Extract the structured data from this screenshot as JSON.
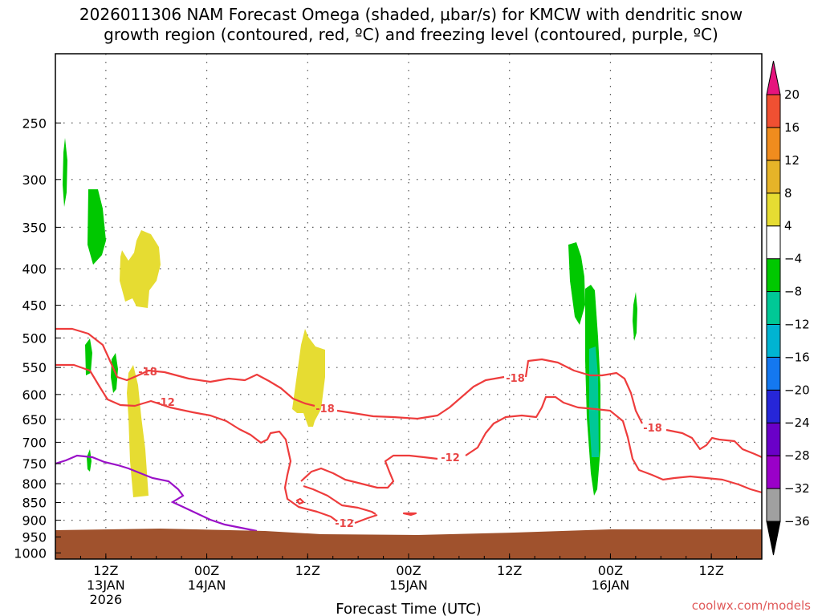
{
  "title": {
    "line1": "2026011306 NAM Forecast Omega (shaded, μbar/s) for KMCW with dendritic snow",
    "line2": "growth region (contoured, red, ºC) and freezing level (contoured, purple, ºC)"
  },
  "credit": "coolwx.com/models",
  "chart_data": {
    "type": "heatmap",
    "xlabel": "Forecast Time (UTC)",
    "ylabel": "",
    "x_ticks": [
      {
        "hour": 6,
        "label": "12Z",
        "sub1": "13JAN",
        "sub2": "2026"
      },
      {
        "hour": 18,
        "label": "00Z",
        "sub1": "14JAN",
        "sub2": ""
      },
      {
        "hour": 30,
        "label": "12Z",
        "sub1": "",
        "sub2": ""
      },
      {
        "hour": 42,
        "label": "00Z",
        "sub1": "15JAN",
        "sub2": ""
      },
      {
        "hour": 54,
        "label": "12Z",
        "sub1": "",
        "sub2": ""
      },
      {
        "hour": 66,
        "label": "00Z",
        "sub1": "16JAN",
        "sub2": ""
      },
      {
        "hour": 78,
        "label": "12Z",
        "sub1": "",
        "sub2": ""
      }
    ],
    "xlim": [
      0,
      84
    ],
    "y_ticks": [
      250,
      300,
      350,
      400,
      450,
      500,
      550,
      600,
      650,
      700,
      750,
      800,
      850,
      900,
      950,
      1000
    ],
    "ylim": [
      200,
      1020
    ],
    "y_scale": "log",
    "grid": true,
    "colorbar": {
      "levels": [
        -36,
        -32,
        -28,
        -24,
        -20,
        -16,
        -12,
        -8,
        -4,
        4,
        8,
        12,
        16,
        20
      ],
      "colors": [
        "#a0a0a0",
        "#9a00c8",
        "#6a00c8",
        "#2626d8",
        "#1478f0",
        "#00b4d2",
        "#00c896",
        "#00c800",
        "#ffffff",
        "#e6dc32",
        "#e6b428",
        "#f08c1e",
        "#f05032"
      ],
      "under_color": "#000000",
      "over_color": "#e6147d"
    },
    "contours": {
      "red_label_values": [
        "-18",
        "-18",
        "-12",
        "-18",
        "-18",
        "-12",
        "-18",
        "-12"
      ],
      "red_color": "#ee3c3c",
      "purple_color": "#9a10c8"
    },
    "terrain_color": "#a0522d",
    "shaded_regions": [
      {
        "value": "-8",
        "color": "#00c800"
      },
      {
        "value": "-8",
        "color": "#00c800"
      },
      {
        "value": "4",
        "color": "#e6dc32"
      },
      {
        "value": "4",
        "color": "#e6dc32"
      },
      {
        "value": "-8",
        "color": "#00c800"
      },
      {
        "value": "-8",
        "color": "#00c800"
      },
      {
        "value": "-8",
        "color": "#00c800"
      },
      {
        "value": "4",
        "color": "#e6dc32"
      },
      {
        "value": "-8",
        "color": "#00c800"
      },
      {
        "value": "-12",
        "color": "#00c896"
      },
      {
        "value": "-8",
        "color": "#00c800"
      }
    ]
  }
}
